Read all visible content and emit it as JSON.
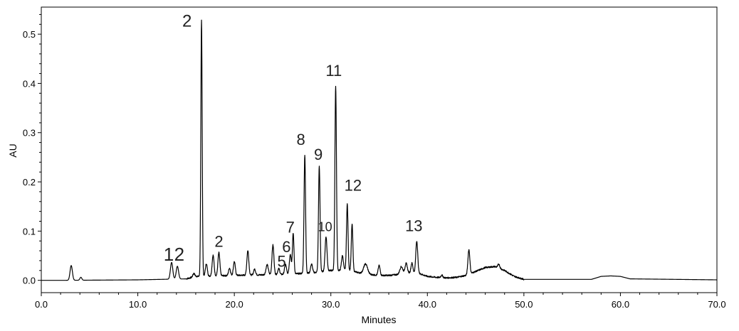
{
  "chart_data": {
    "type": "line",
    "title": "",
    "xlabel": "Minutes",
    "ylabel": "AU",
    "xlim": [
      0,
      70
    ],
    "ylim": [
      -0.025,
      0.555
    ],
    "grid": false,
    "legend": "none",
    "x_ticks": [
      {
        "value": 0,
        "label": "0.0"
      },
      {
        "value": 10,
        "label": "10.0"
      },
      {
        "value": 20,
        "label": "20.0"
      },
      {
        "value": 30,
        "label": "30.0"
      },
      {
        "value": 40,
        "label": "40.0"
      },
      {
        "value": 50,
        "label": "50.0"
      },
      {
        "value": 60,
        "label": "60.0"
      },
      {
        "value": 70,
        "label": "70.0"
      }
    ],
    "y_ticks": [
      {
        "value": 0.0,
        "label": "0.0"
      },
      {
        "value": 0.1,
        "label": "0.1"
      },
      {
        "value": 0.2,
        "label": "0.2"
      },
      {
        "value": 0.3,
        "label": "0.3"
      },
      {
        "value": 0.4,
        "label": "0.4"
      },
      {
        "value": 0.5,
        "label": "0.5"
      }
    ],
    "line_color": "#000000",
    "baseline": {
      "x": [
        0.0,
        2.5,
        10.0,
        15.0,
        16.0,
        20.0,
        25.0,
        28.0,
        30.0,
        32.0,
        33.0,
        34.0,
        35.0,
        36.0,
        37.0,
        38.0,
        39.0,
        40.0,
        41.0,
        42.0,
        43.0,
        44.0,
        45.0,
        46.0,
        47.0,
        48.0,
        49.0,
        50.0,
        57.0,
        58.0,
        59.0,
        60.0,
        61.0,
        70.0
      ],
      "y": [
        0.0,
        0.0,
        0.001,
        0.003,
        0.008,
        0.01,
        0.012,
        0.015,
        0.02,
        0.02,
        0.015,
        0.012,
        0.01,
        0.01,
        0.012,
        0.015,
        0.015,
        0.008,
        0.006,
        0.005,
        0.006,
        0.01,
        0.018,
        0.026,
        0.028,
        0.02,
        0.008,
        0.002,
        0.002,
        0.008,
        0.009,
        0.008,
        0.003,
        0.001
      ]
    },
    "peaks": [
      {
        "x": 3.1,
        "height": 0.03,
        "width": 0.12
      },
      {
        "x": 4.1,
        "height": 0.006,
        "width": 0.1
      },
      {
        "x": 13.5,
        "height": 0.034,
        "width": 0.12
      },
      {
        "x": 14.1,
        "height": 0.026,
        "width": 0.12
      },
      {
        "x": 15.8,
        "height": 0.007,
        "width": 0.1
      },
      {
        "x": 16.6,
        "height": 0.52,
        "width": 0.07
      },
      {
        "x": 17.1,
        "height": 0.025,
        "width": 0.1
      },
      {
        "x": 17.8,
        "height": 0.042,
        "width": 0.1
      },
      {
        "x": 18.4,
        "height": 0.047,
        "width": 0.1
      },
      {
        "x": 19.5,
        "height": 0.015,
        "width": 0.1
      },
      {
        "x": 20.0,
        "height": 0.028,
        "width": 0.1
      },
      {
        "x": 21.4,
        "height": 0.05,
        "width": 0.1
      },
      {
        "x": 22.1,
        "height": 0.012,
        "width": 0.1
      },
      {
        "x": 23.4,
        "height": 0.02,
        "width": 0.12
      },
      {
        "x": 24.0,
        "height": 0.06,
        "width": 0.1
      },
      {
        "x": 24.6,
        "height": 0.012,
        "width": 0.1
      },
      {
        "x": 25.3,
        "height": 0.02,
        "width": 0.1
      },
      {
        "x": 25.8,
        "height": 0.04,
        "width": 0.1
      },
      {
        "x": 26.1,
        "height": 0.082,
        "width": 0.08
      },
      {
        "x": 27.3,
        "height": 0.24,
        "width": 0.08
      },
      {
        "x": 28.0,
        "height": 0.018,
        "width": 0.1
      },
      {
        "x": 28.8,
        "height": 0.215,
        "width": 0.08
      },
      {
        "x": 29.5,
        "height": 0.07,
        "width": 0.1
      },
      {
        "x": 30.5,
        "height": 0.375,
        "width": 0.08
      },
      {
        "x": 31.2,
        "height": 0.03,
        "width": 0.1
      },
      {
        "x": 31.7,
        "height": 0.135,
        "width": 0.08
      },
      {
        "x": 32.2,
        "height": 0.095,
        "width": 0.08
      },
      {
        "x": 33.6,
        "height": 0.02,
        "width": 0.2
      },
      {
        "x": 35.0,
        "height": 0.02,
        "width": 0.1
      },
      {
        "x": 37.3,
        "height": 0.015,
        "width": 0.15
      },
      {
        "x": 37.8,
        "height": 0.02,
        "width": 0.12
      },
      {
        "x": 38.4,
        "height": 0.02,
        "width": 0.1
      },
      {
        "x": 38.9,
        "height": 0.065,
        "width": 0.1
      },
      {
        "x": 41.5,
        "height": 0.005,
        "width": 0.1
      },
      {
        "x": 44.3,
        "height": 0.05,
        "width": 0.1
      },
      {
        "x": 47.4,
        "height": 0.008,
        "width": 0.1
      }
    ],
    "annotations": [
      {
        "text": "1",
        "x": 13.2,
        "y": 0.04,
        "size": 26
      },
      {
        "text": "2",
        "x": 14.3,
        "y": 0.04,
        "size": 26
      },
      {
        "text": "2",
        "x": 15.1,
        "y": 0.515,
        "size": 24
      },
      {
        "text": "2",
        "x": 18.4,
        "y": 0.068,
        "size": 22
      },
      {
        "text": "5",
        "x": 24.9,
        "y": 0.028,
        "size": 22
      },
      {
        "text": "6",
        "x": 25.4,
        "y": 0.057,
        "size": 22
      },
      {
        "text": "7",
        "x": 25.8,
        "y": 0.097,
        "size": 22
      },
      {
        "text": "8",
        "x": 26.9,
        "y": 0.275,
        "size": 22
      },
      {
        "text": "9",
        "x": 28.7,
        "y": 0.245,
        "size": 22
      },
      {
        "text": "10",
        "x": 29.4,
        "y": 0.1,
        "size": 18
      },
      {
        "text": "11",
        "x": 30.3,
        "y": 0.415,
        "size": 22
      },
      {
        "text": "12",
        "x": 32.3,
        "y": 0.182,
        "size": 22
      },
      {
        "text": "13",
        "x": 38.6,
        "y": 0.1,
        "size": 22
      }
    ]
  }
}
